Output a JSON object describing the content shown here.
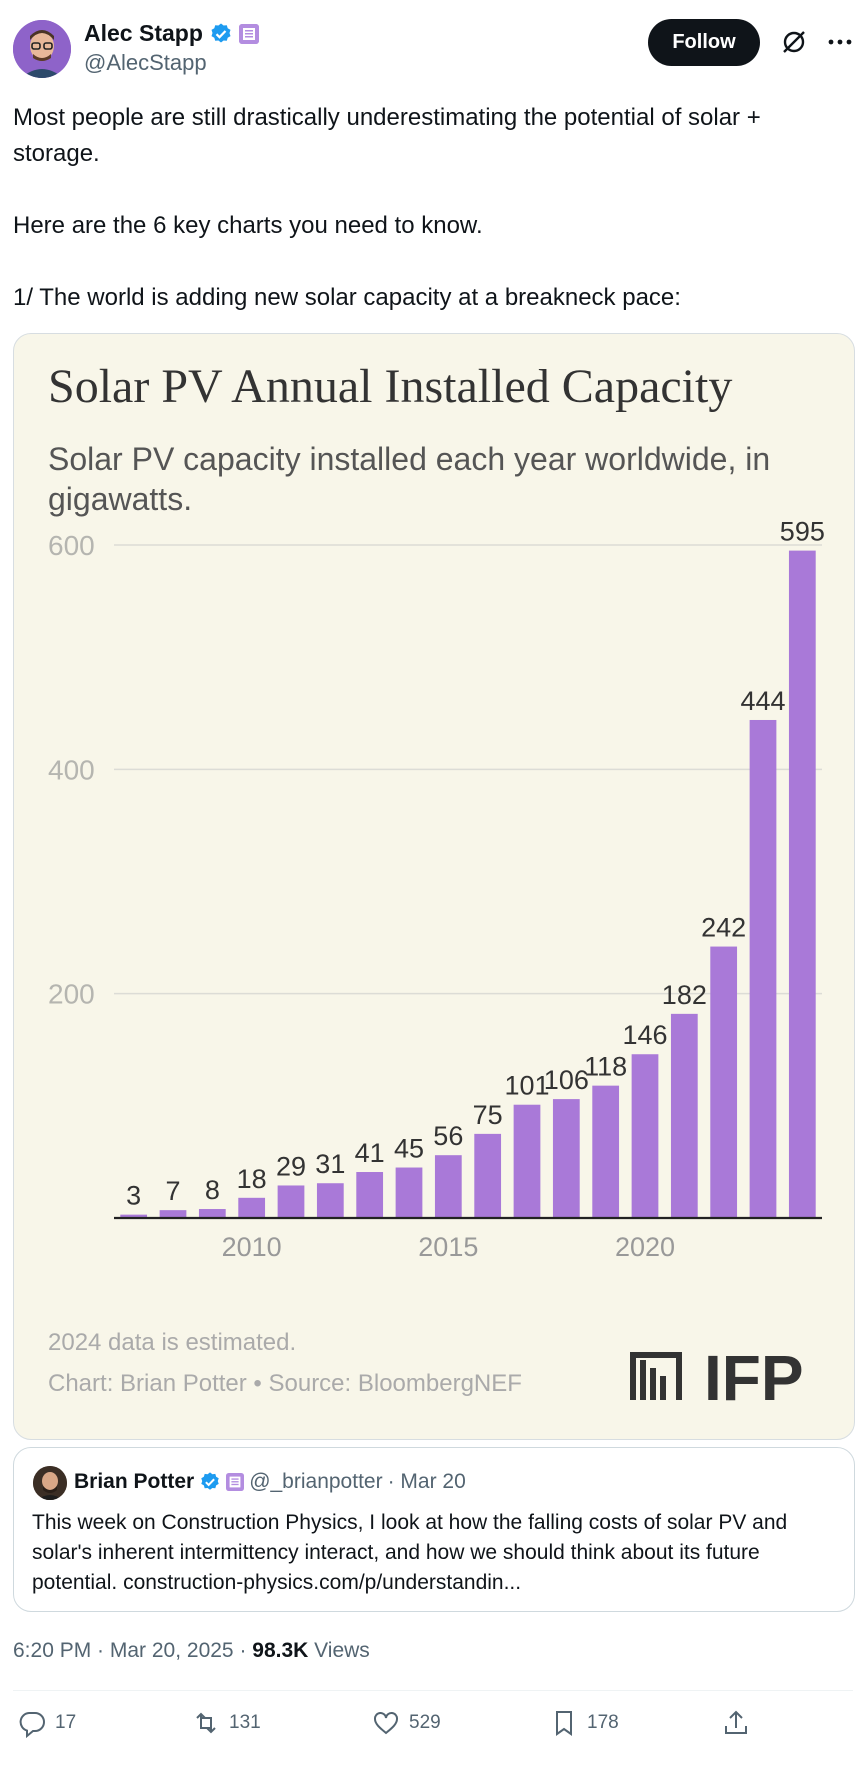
{
  "author": {
    "name": "Alec Stapp",
    "handle": "@AlecStapp",
    "follow_label": "Follow"
  },
  "tweet": {
    "paragraphs": [
      "Most people are still drastically underestimating the potential of solar + storage.",
      "Here are the 6 key charts you need to know.",
      "1/ The world is adding new solar capacity at a breakneck pace:"
    ]
  },
  "chart": {
    "title": "Solar PV Annual Installed Capacity",
    "subtitle_line1": "Solar PV capacity installed each year worldwide, in",
    "subtitle_line2": "gigawatts.",
    "note": "2024 data is estimated.",
    "source": "Chart: Brian Potter • Source: BloombergNEF",
    "logo_text": "IFP",
    "bar_color": "#a979d8",
    "background": "#f8f6e9"
  },
  "chart_data": {
    "type": "bar",
    "title": "Solar PV Annual Installed Capacity",
    "subtitle": "Solar PV capacity installed each year worldwide, in gigawatts.",
    "categories": [
      2007,
      2008,
      2009,
      2010,
      2011,
      2012,
      2013,
      2014,
      2015,
      2016,
      2017,
      2018,
      2019,
      2020,
      2021,
      2022,
      2023,
      2024
    ],
    "values": [
      3,
      7,
      8,
      18,
      29,
      31,
      41,
      45,
      56,
      75,
      101,
      106,
      118,
      146,
      182,
      242,
      444,
      595
    ],
    "x_tick_labels": [
      "2010",
      "2015",
      "2020"
    ],
    "y_ticks": [
      200,
      400,
      600
    ],
    "ylim": [
      0,
      600
    ],
    "grid": true,
    "xlabel": "",
    "ylabel": ""
  },
  "quote": {
    "name": "Brian Potter",
    "handle": "@_brianpotter",
    "date": "· Mar 20",
    "text": "This week on Construction Physics, I look at how the falling costs of solar PV and solar's inherent intermittency interact, and how we should think about its future potential. construction-physics.com/p/understandin..."
  },
  "meta": {
    "time": "6:20 PM · Mar 20, 2025 · ",
    "views_count": "98.3K",
    "views_label": " Views"
  },
  "actions": {
    "replies": "17",
    "reposts": "131",
    "likes": "529",
    "bookmarks": "178"
  }
}
